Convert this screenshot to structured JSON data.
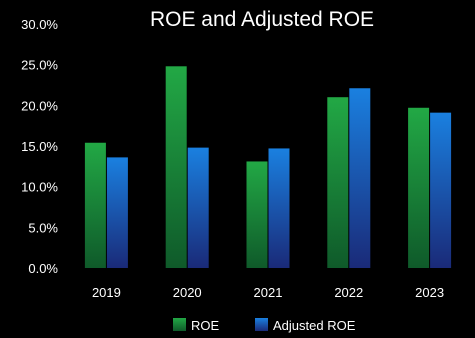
{
  "chart_data": {
    "type": "bar",
    "title": "ROE and Adjusted ROE",
    "categories": [
      "2019",
      "2020",
      "2021",
      "2022",
      "2023"
    ],
    "series": [
      {
        "name": "ROE",
        "values": [
          15.4,
          24.8,
          13.1,
          21.0,
          19.7
        ],
        "color": "#1f9a3c"
      },
      {
        "name": "Adjusted ROE",
        "values": [
          13.6,
          14.8,
          14.7,
          22.1,
          19.1
        ],
        "color": "#1676d2"
      }
    ],
    "y_tick_labels": [
      "0.0%",
      "5.0%",
      "10.0%",
      "15.0%",
      "20.0%",
      "25.0%",
      "30.0%"
    ],
    "y_ticks": [
      0,
      5,
      10,
      15,
      20,
      25,
      30
    ],
    "ylim": [
      0,
      30
    ],
    "grid": false,
    "legend": "bottom"
  }
}
